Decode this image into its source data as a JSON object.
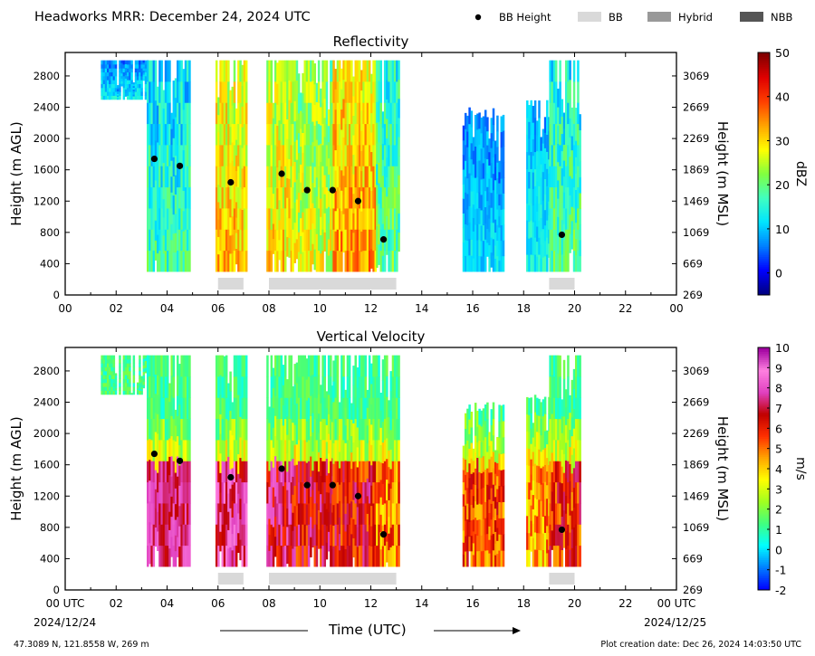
{
  "header": {
    "title": "Headworks MRR:  December 24, 2024 UTC",
    "legend": [
      {
        "label": "BB Height",
        "kind": "dot",
        "color": "#000000"
      },
      {
        "label": "BB",
        "kind": "patch",
        "color": "#d9d9d9"
      },
      {
        "label": "Hybrid",
        "kind": "patch",
        "color": "#999999"
      },
      {
        "label": "NBB",
        "kind": "patch",
        "color": "#555555"
      }
    ]
  },
  "footer": {
    "location": "47.3089 N, 121.8558 W, 269 m",
    "created": "Plot creation date: Dec 26, 2024 14:03:50 UTC",
    "xlabel": "Time (UTC)",
    "start_date": "2024/12/24",
    "end_date": "2024/12/25"
  },
  "chart_data": [
    {
      "type": "heatmap",
      "title": "Reflectivity",
      "ylabel": "Height (m AGL)",
      "y2label": "Height (m MSL)",
      "colorbar_label": "dBZ",
      "colorbar_range": [
        -5,
        50
      ],
      "colorbar_ticks": [
        "0",
        "10",
        "20",
        "30",
        "40",
        "50"
      ],
      "colorbar_tick_values": [
        0,
        10,
        20,
        30,
        40,
        50
      ],
      "colormap": [
        "#000080",
        "#0000ff",
        "#0080ff",
        "#00e5ff",
        "#40ffc0",
        "#80ff40",
        "#ffff00",
        "#ffa500",
        "#ff4000",
        "#e00000",
        "#800000"
      ],
      "xlim": [
        0,
        24
      ],
      "ylim": [
        0,
        3100
      ],
      "xticks": [
        "00",
        "02",
        "04",
        "06",
        "08",
        "10",
        "12",
        "14",
        "16",
        "18",
        "20",
        "22",
        "00"
      ],
      "yticks": [
        "0",
        "400",
        "800",
        "1200",
        "1600",
        "2000",
        "2400",
        "2800"
      ],
      "y2ticks": [
        "269",
        "669",
        "1069",
        "1469",
        "1869",
        "2269",
        "2669",
        "3069"
      ],
      "segments": [
        {
          "t0": 1.4,
          "t1": 3.2,
          "zmin": 2500,
          "zmax": 3000,
          "val": 12,
          "hi": 4
        },
        {
          "t0": 3.2,
          "t1": 4.9,
          "zmin": 300,
          "zmax": 3000,
          "val": 17,
          "hi": 6
        },
        {
          "t0": 5.9,
          "t1": 7.1,
          "zmin": 300,
          "zmax": 3000,
          "val": 32,
          "hi": 6
        },
        {
          "t0": 7.9,
          "t1": 8.9,
          "zmin": 300,
          "zmax": 3000,
          "val": 30,
          "hi": 6
        },
        {
          "t0": 8.9,
          "t1": 10.5,
          "zmin": 300,
          "zmax": 3000,
          "val": 27,
          "hi": 6
        },
        {
          "t0": 10.5,
          "t1": 12.2,
          "zmin": 300,
          "zmax": 3000,
          "val": 34,
          "hi": 6
        },
        {
          "t0": 12.2,
          "t1": 13.1,
          "zmin": 300,
          "zmax": 3000,
          "val": 20,
          "hi": 6
        },
        {
          "t0": 15.6,
          "t1": 17.2,
          "zmin": 300,
          "zmax": 2400,
          "val": 12,
          "hi": 4
        },
        {
          "t0": 18.1,
          "t1": 19.0,
          "zmin": 300,
          "zmax": 2500,
          "val": 14,
          "hi": 4
        },
        {
          "t0": 19.0,
          "t1": 20.2,
          "zmin": 300,
          "zmax": 3000,
          "val": 19,
          "hi": 6
        }
      ],
      "bb_height": [
        {
          "t": 3.5,
          "z": 1740
        },
        {
          "t": 4.5,
          "z": 1650
        },
        {
          "t": 6.5,
          "z": 1440
        },
        {
          "t": 8.5,
          "z": 1550
        },
        {
          "t": 9.5,
          "z": 1340
        },
        {
          "t": 10.5,
          "z": 1340
        },
        {
          "t": 11.5,
          "z": 1200
        },
        {
          "t": 12.5,
          "z": 710
        },
        {
          "t": 19.5,
          "z": 770
        }
      ],
      "bb_periods": [
        [
          6.0,
          7.0
        ],
        [
          8.0,
          13.0
        ],
        [
          19.0,
          20.0
        ]
      ]
    },
    {
      "type": "heatmap",
      "title": "Vertical Velocity",
      "ylabel": "Height (m AGL)",
      "y2label": "Height (m MSL)",
      "colorbar_label": "m/s",
      "colorbar_range": [
        -2,
        10
      ],
      "colorbar_ticks": [
        "-2",
        "-1",
        "0",
        "1",
        "2",
        "3",
        "4",
        "5",
        "6",
        "7",
        "8",
        "9",
        "10"
      ],
      "colorbar_tick_values": [
        -2,
        -1,
        0,
        1,
        2,
        3,
        4,
        5,
        6,
        7,
        8,
        9,
        10
      ],
      "colormap": [
        "#0000ff",
        "#0080ff",
        "#00ffff",
        "#40ff80",
        "#a0ff20",
        "#ffff00",
        "#ffa500",
        "#ff3000",
        "#c00000",
        "#e040c0",
        "#ff80e0",
        "#a000a0"
      ],
      "xlim": [
        0,
        24
      ],
      "ylim": [
        0,
        3100
      ],
      "xticks": [
        "00 UTC",
        "02",
        "04",
        "06",
        "08",
        "10",
        "12",
        "14",
        "16",
        "18",
        "20",
        "22",
        "00 UTC"
      ],
      "yticks": [
        "0",
        "400",
        "800",
        "1200",
        "1600",
        "2000",
        "2400",
        "2800"
      ],
      "y2ticks": [
        "269",
        "669",
        "1069",
        "1469",
        "1869",
        "2269",
        "2669",
        "3069"
      ],
      "segments": [
        {
          "t0": 1.4,
          "t1": 3.2,
          "zmin": 2500,
          "zmax": 3000,
          "val": 1.5,
          "hi": 1.5
        },
        {
          "t0": 3.2,
          "t1": 4.9,
          "zmin": 300,
          "zmax": 3000,
          "val": 7.5,
          "hi": 1
        },
        {
          "t0": 5.9,
          "t1": 7.1,
          "zmin": 300,
          "zmax": 3000,
          "val": 7.8,
          "hi": 1.5
        },
        {
          "t0": 7.9,
          "t1": 8.9,
          "zmin": 300,
          "zmax": 3000,
          "val": 7.0,
          "hi": 1.5
        },
        {
          "t0": 8.9,
          "t1": 10.5,
          "zmin": 300,
          "zmax": 3000,
          "val": 6.5,
          "hi": 1.5
        },
        {
          "t0": 10.5,
          "t1": 12.2,
          "zmin": 300,
          "zmax": 3000,
          "val": 6.3,
          "hi": 1.5
        },
        {
          "t0": 12.2,
          "t1": 13.1,
          "zmin": 300,
          "zmax": 3000,
          "val": 5.0,
          "hi": 1.5
        },
        {
          "t0": 15.6,
          "t1": 17.2,
          "zmin": 300,
          "zmax": 2400,
          "val": 5.5,
          "hi": 1.5
        },
        {
          "t0": 18.1,
          "t1": 19.0,
          "zmin": 300,
          "zmax": 2500,
          "val": 4.5,
          "hi": 1.5
        },
        {
          "t0": 19.0,
          "t1": 20.2,
          "zmin": 300,
          "zmax": 3000,
          "val": 6.0,
          "hi": 1.5
        }
      ],
      "bb_height": [
        {
          "t": 3.5,
          "z": 1740
        },
        {
          "t": 4.5,
          "z": 1650
        },
        {
          "t": 6.5,
          "z": 1440
        },
        {
          "t": 8.5,
          "z": 1550
        },
        {
          "t": 9.5,
          "z": 1340
        },
        {
          "t": 10.5,
          "z": 1340
        },
        {
          "t": 11.5,
          "z": 1200
        },
        {
          "t": 12.5,
          "z": 710
        },
        {
          "t": 19.5,
          "z": 770
        }
      ],
      "bb_periods": [
        [
          6.0,
          7.0
        ],
        [
          8.0,
          13.0
        ],
        [
          19.0,
          20.0
        ]
      ]
    }
  ]
}
